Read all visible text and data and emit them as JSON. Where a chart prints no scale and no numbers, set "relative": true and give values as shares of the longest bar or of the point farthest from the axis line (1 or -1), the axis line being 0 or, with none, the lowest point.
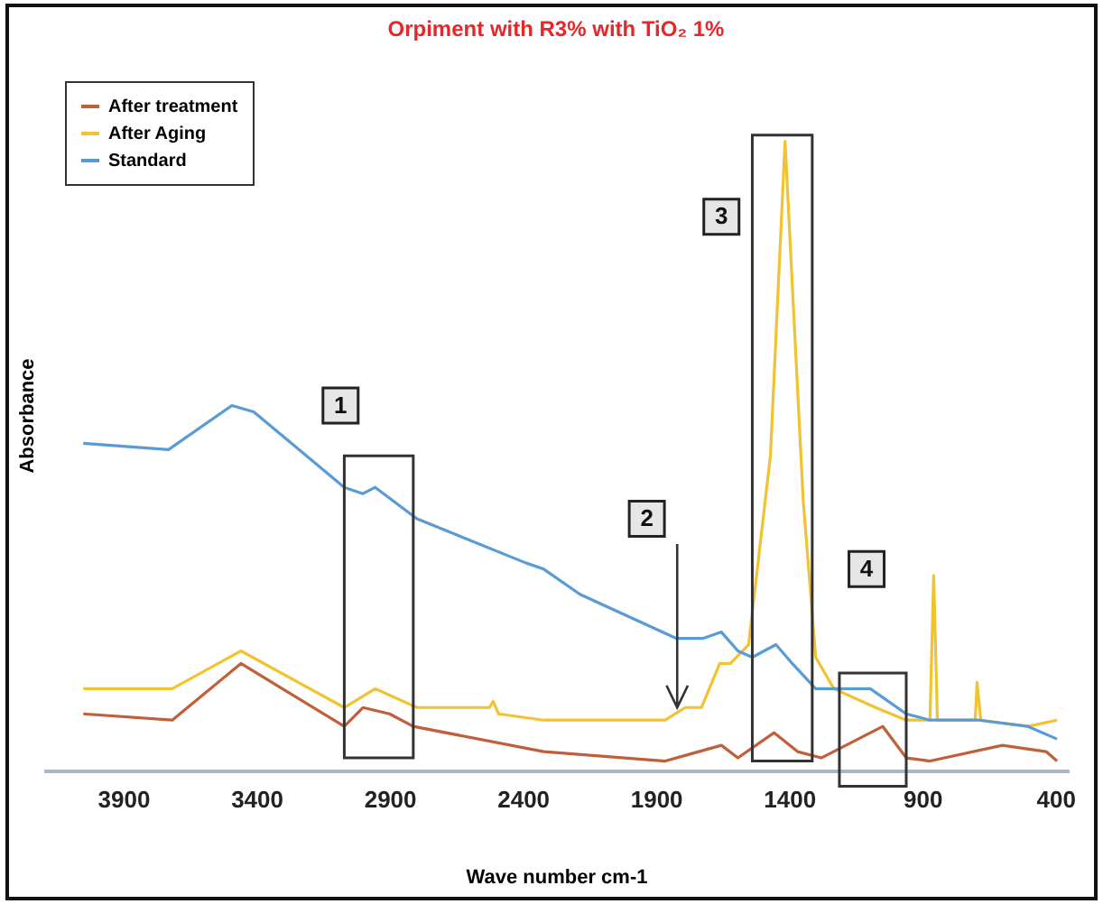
{
  "chart_data": {
    "type": "line",
    "title": "Orpiment with R3% with TiO₂ 1%",
    "xlabel": "Wave number cm-1",
    "ylabel": "Absorbance",
    "relative": true,
    "xlim": [
      4200,
      350
    ],
    "xticks": [
      3900,
      3400,
      2900,
      2400,
      1900,
      1400,
      900,
      400
    ],
    "legend": "top left",
    "grid": false,
    "line_style": "solid",
    "annotations": [
      "1",
      "2",
      "3",
      "4"
    ],
    "series": [
      {
        "name": "After treatment",
        "color": "#c0603a",
        "x": [
          4050,
          3716,
          3458,
          3070,
          3000,
          2900,
          2811,
          2321,
          1865,
          1654,
          1592,
          1456,
          1368,
          1279,
          1048,
          960,
          871,
          599,
          435,
          394
        ],
        "values": [
          0.09,
          0.08,
          0.17,
          0.07,
          0.1,
          0.09,
          0.07,
          0.03,
          0.015,
          0.04,
          0.02,
          0.06,
          0.03,
          0.02,
          0.07,
          0.02,
          0.015,
          0.04,
          0.03,
          0.015
        ]
      },
      {
        "name": "After Aging",
        "color": "#f2c230",
        "x": [
          4050,
          3716,
          3458,
          3070,
          2954,
          2797,
          2525,
          2511,
          2491,
          2321,
          1865,
          1790,
          1729,
          1660,
          1620,
          1552,
          1470,
          1415,
          1347,
          1300,
          1232,
          1075,
          960,
          871,
          857,
          843,
          701,
          694,
          680,
          503,
          394
        ],
        "values": [
          0.13,
          0.13,
          0.19,
          0.1,
          0.13,
          0.1,
          0.1,
          0.11,
          0.09,
          0.08,
          0.08,
          0.1,
          0.1,
          0.17,
          0.17,
          0.2,
          0.5,
          1,
          0.43,
          0.18,
          0.13,
          0.1,
          0.08,
          0.08,
          0.31,
          0.08,
          0.08,
          0.14,
          0.08,
          0.07,
          0.08
        ]
      },
      {
        "name": "Standard",
        "color": "#5b9bd5",
        "x": [
          4050,
          3730,
          3492,
          3410,
          3070,
          3000,
          2954,
          2797,
          2389,
          2321,
          2185,
          1824,
          1722,
          1654,
          1592,
          1538,
          1449,
          1388,
          1300,
          1095,
          960,
          871,
          687,
          503,
          394
        ],
        "values": [
          0.52,
          0.51,
          0.58,
          0.57,
          0.45,
          0.44,
          0.45,
          0.4,
          0.33,
          0.32,
          0.28,
          0.21,
          0.21,
          0.22,
          0.19,
          0.18,
          0.2,
          0.17,
          0.13,
          0.13,
          0.09,
          0.08,
          0.08,
          0.07,
          0.05
        ]
      }
    ]
  }
}
